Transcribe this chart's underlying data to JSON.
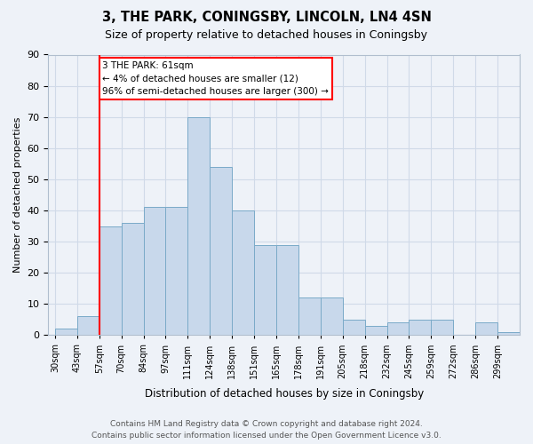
{
  "title": "3, THE PARK, CONINGSBY, LINCOLN, LN4 4SN",
  "subtitle": "Size of property relative to detached houses in Coningsby",
  "xlabel": "Distribution of detached houses by size in Coningsby",
  "ylabel": "Number of detached properties",
  "bin_labels": [
    "30sqm",
    "43sqm",
    "57sqm",
    "70sqm",
    "84sqm",
    "97sqm",
    "111sqm",
    "124sqm",
    "138sqm",
    "151sqm",
    "165sqm",
    "178sqm",
    "191sqm",
    "205sqm",
    "218sqm",
    "232sqm",
    "245sqm",
    "259sqm",
    "272sqm",
    "286sqm",
    "299sqm"
  ],
  "bar_heights": [
    2,
    6,
    35,
    36,
    41,
    41,
    70,
    54,
    40,
    29,
    29,
    12,
    12,
    5,
    3,
    4,
    5,
    5,
    0,
    4,
    1
  ],
  "bar_color": "#c8d8eb",
  "bar_edge_color": "#7aaac8",
  "grid_color": "#d0dae8",
  "bg_color": "#eef2f8",
  "vline_index": 2,
  "annotation_text": "3 THE PARK: 61sqm\n← 4% of detached houses are smaller (12)\n96% of semi-detached houses are larger (300) →",
  "annotation_box_color": "white",
  "annotation_box_edge": "red",
  "vline_color": "red",
  "ylim": [
    0,
    90
  ],
  "yticks": [
    0,
    10,
    20,
    30,
    40,
    50,
    60,
    70,
    80,
    90
  ],
  "footer_line1": "Contains HM Land Registry data © Crown copyright and database right 2024.",
  "footer_line2": "Contains public sector information licensed under the Open Government Licence v3.0."
}
